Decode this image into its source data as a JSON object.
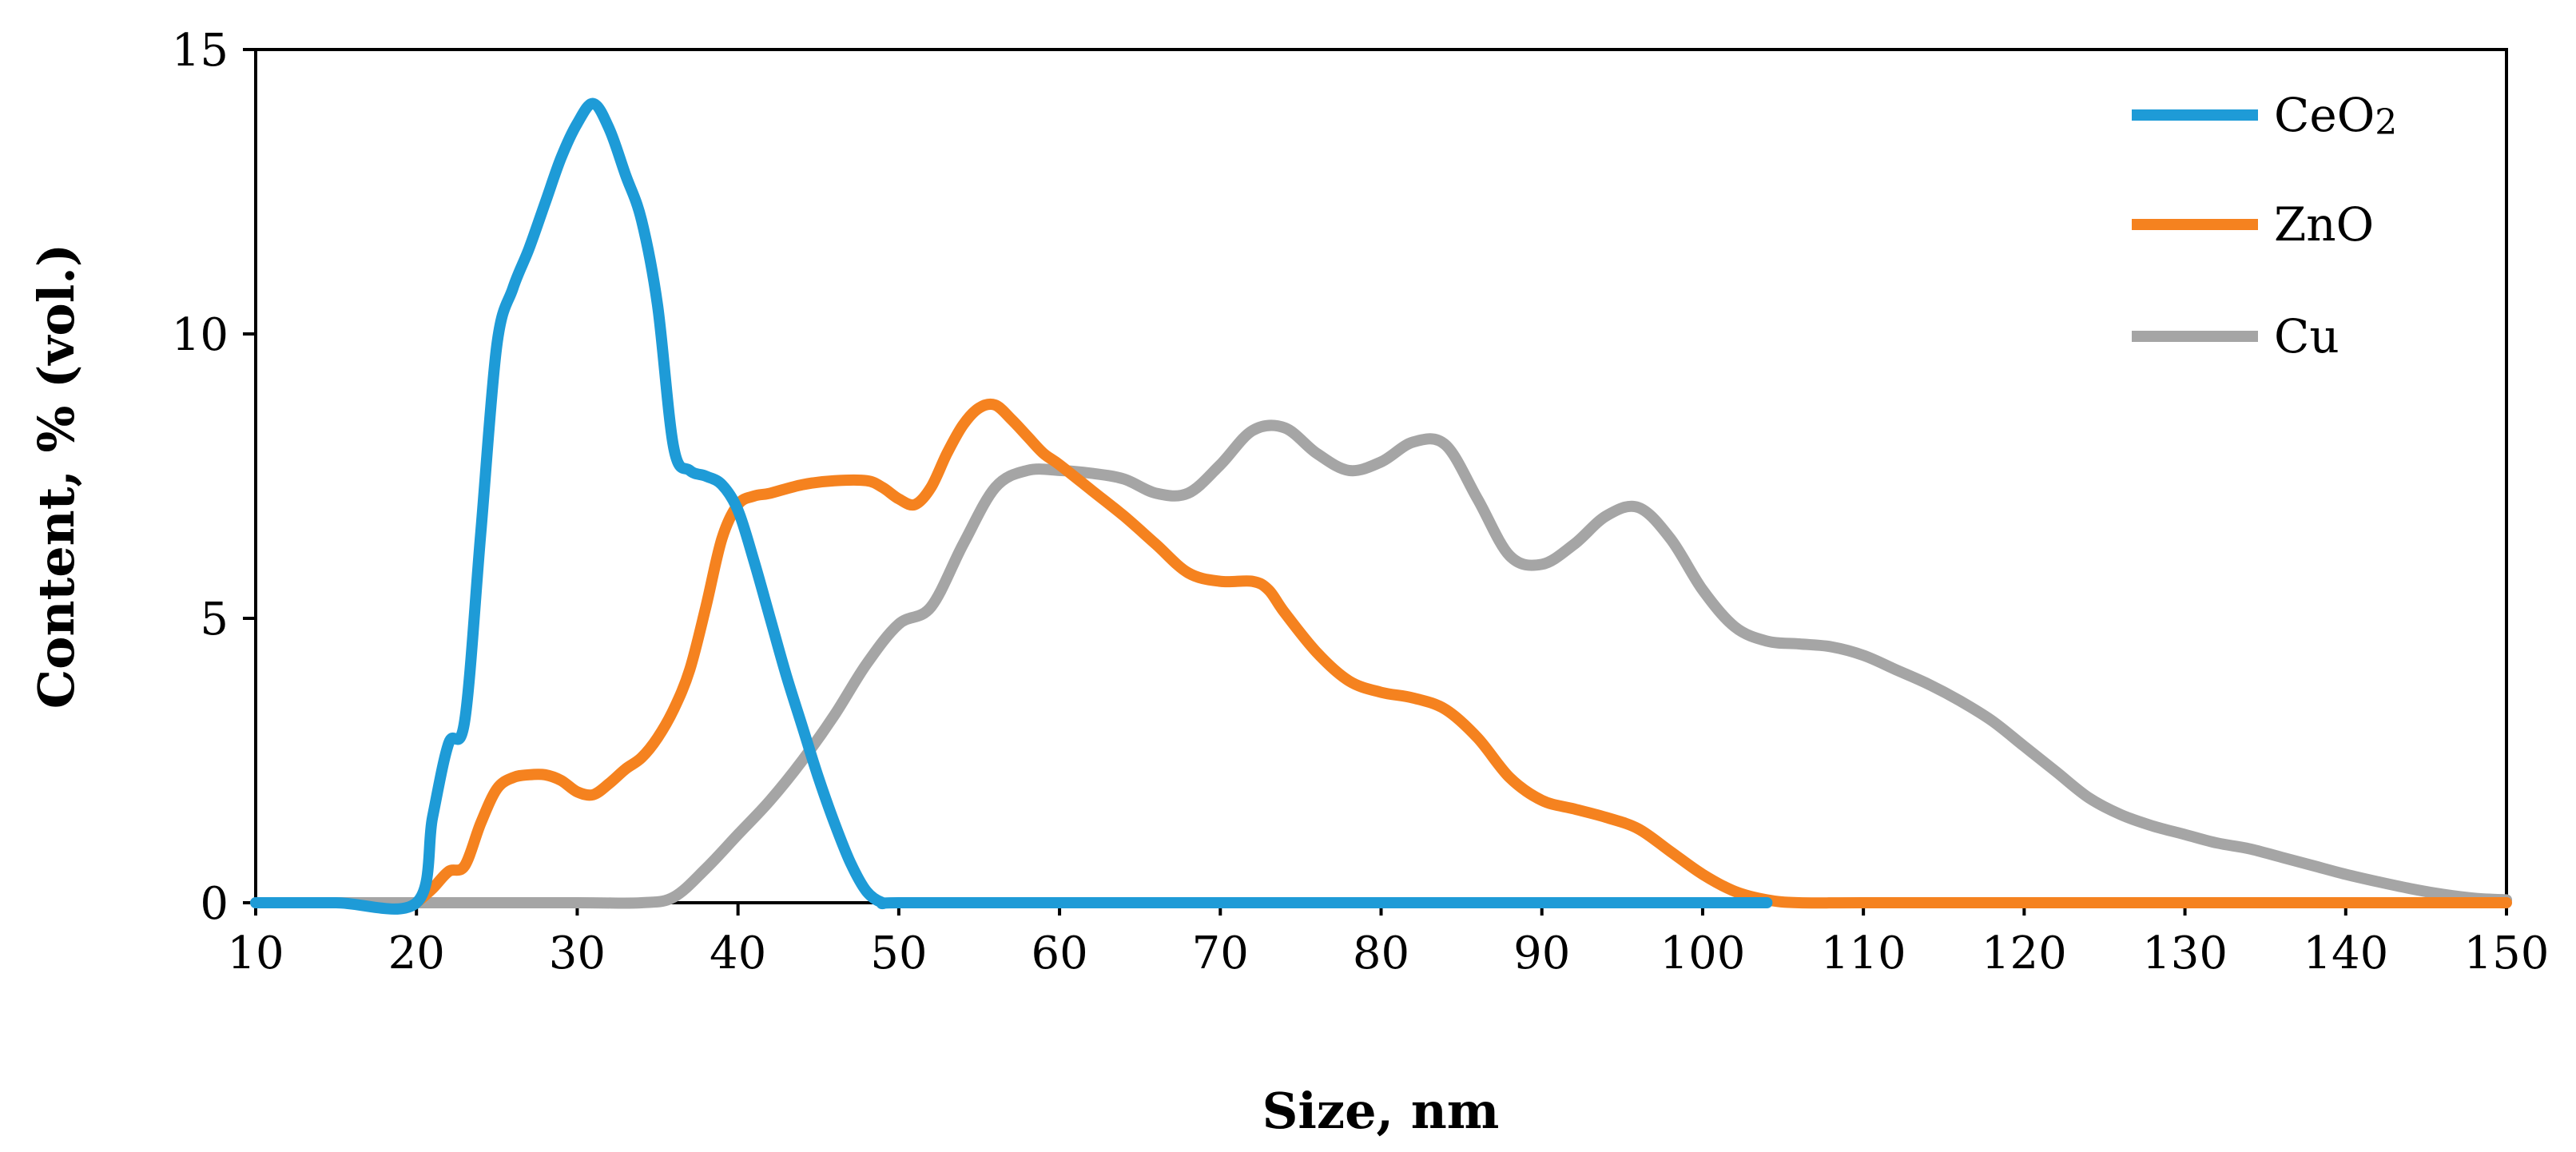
{
  "chart_data": {
    "type": "line",
    "title": "",
    "xlabel": "Size, nm",
    "ylabel": "Content, % (vol.)",
    "xlim": [
      10,
      150
    ],
    "ylim": [
      0,
      15
    ],
    "x_ticks": [
      10,
      20,
      30,
      40,
      50,
      60,
      70,
      80,
      90,
      100,
      110,
      120,
      130,
      140,
      150
    ],
    "y_ticks": [
      0,
      5,
      10,
      15
    ],
    "grid": false,
    "legend_position": "top-right",
    "series": [
      {
        "name": "CeO2",
        "legend_main": "CeO",
        "legend_sub": "2",
        "color": "#1E9BD7",
        "points": [
          [
            10,
            0
          ],
          [
            15,
            0
          ],
          [
            20,
            0
          ],
          [
            21,
            1.5
          ],
          [
            22,
            2.8
          ],
          [
            23,
            3.2
          ],
          [
            24,
            6.5
          ],
          [
            25,
            9.8
          ],
          [
            26,
            10.8
          ],
          [
            27,
            11.5
          ],
          [
            28,
            12.3
          ],
          [
            29,
            13.1
          ],
          [
            30,
            13.7
          ],
          [
            31,
            14.05
          ],
          [
            32,
            13.6
          ],
          [
            33,
            12.8
          ],
          [
            34,
            12.0
          ],
          [
            35,
            10.5
          ],
          [
            36,
            8.0
          ],
          [
            37,
            7.6
          ],
          [
            38,
            7.5
          ],
          [
            39,
            7.35
          ],
          [
            40,
            6.9
          ],
          [
            41,
            6.0
          ],
          [
            42,
            5.0
          ],
          [
            43,
            4.0
          ],
          [
            44,
            3.1
          ],
          [
            45,
            2.2
          ],
          [
            46,
            1.4
          ],
          [
            47,
            0.7
          ],
          [
            48,
            0.2
          ],
          [
            49,
            0
          ],
          [
            50,
            0
          ],
          [
            60,
            0
          ],
          [
            80,
            0
          ],
          [
            100,
            0
          ],
          [
            104,
            0
          ]
        ]
      },
      {
        "name": "ZnO",
        "legend_main": "ZnO",
        "legend_sub": "",
        "color": "#F5821F",
        "points": [
          [
            20,
            0
          ],
          [
            21,
            0.25
          ],
          [
            22,
            0.55
          ],
          [
            23,
            0.65
          ],
          [
            24,
            1.4
          ],
          [
            25,
            2.0
          ],
          [
            26,
            2.2
          ],
          [
            27,
            2.25
          ],
          [
            28,
            2.25
          ],
          [
            29,
            2.15
          ],
          [
            30,
            1.95
          ],
          [
            31,
            1.9
          ],
          [
            32,
            2.1
          ],
          [
            33,
            2.35
          ],
          [
            34,
            2.55
          ],
          [
            35,
            2.9
          ],
          [
            36,
            3.4
          ],
          [
            37,
            4.1
          ],
          [
            38,
            5.2
          ],
          [
            39,
            6.4
          ],
          [
            40,
            7.0
          ],
          [
            41,
            7.15
          ],
          [
            42,
            7.2
          ],
          [
            44,
            7.35
          ],
          [
            46,
            7.42
          ],
          [
            48,
            7.42
          ],
          [
            49,
            7.3
          ],
          [
            50,
            7.1
          ],
          [
            51,
            7.0
          ],
          [
            52,
            7.3
          ],
          [
            53,
            7.9
          ],
          [
            54,
            8.4
          ],
          [
            55,
            8.7
          ],
          [
            56,
            8.75
          ],
          [
            57,
            8.5
          ],
          [
            58,
            8.2
          ],
          [
            59,
            7.9
          ],
          [
            60,
            7.7
          ],
          [
            62,
            7.25
          ],
          [
            64,
            6.8
          ],
          [
            66,
            6.3
          ],
          [
            68,
            5.8
          ],
          [
            70,
            5.65
          ],
          [
            72,
            5.65
          ],
          [
            73,
            5.5
          ],
          [
            74,
            5.1
          ],
          [
            76,
            4.4
          ],
          [
            78,
            3.9
          ],
          [
            80,
            3.7
          ],
          [
            82,
            3.6
          ],
          [
            84,
            3.4
          ],
          [
            86,
            2.9
          ],
          [
            88,
            2.2
          ],
          [
            90,
            1.8
          ],
          [
            92,
            1.65
          ],
          [
            94,
            1.5
          ],
          [
            96,
            1.3
          ],
          [
            98,
            0.9
          ],
          [
            100,
            0.5
          ],
          [
            102,
            0.2
          ],
          [
            104,
            0.05
          ],
          [
            106,
            0
          ],
          [
            110,
            0
          ],
          [
            120,
            0
          ],
          [
            130,
            0
          ],
          [
            140,
            0
          ],
          [
            150,
            0
          ]
        ]
      },
      {
        "name": "Cu",
        "legend_main": "Cu",
        "legend_sub": "",
        "color": "#A5A5A5",
        "points": [
          [
            10,
            0
          ],
          [
            20,
            0
          ],
          [
            30,
            0
          ],
          [
            34,
            0
          ],
          [
            36,
            0.1
          ],
          [
            38,
            0.6
          ],
          [
            40,
            1.2
          ],
          [
            42,
            1.8
          ],
          [
            44,
            2.5
          ],
          [
            46,
            3.3
          ],
          [
            48,
            4.2
          ],
          [
            50,
            4.9
          ],
          [
            52,
            5.2
          ],
          [
            54,
            6.3
          ],
          [
            56,
            7.3
          ],
          [
            58,
            7.6
          ],
          [
            60,
            7.6
          ],
          [
            62,
            7.55
          ],
          [
            64,
            7.45
          ],
          [
            66,
            7.2
          ],
          [
            68,
            7.2
          ],
          [
            70,
            7.7
          ],
          [
            72,
            8.3
          ],
          [
            74,
            8.35
          ],
          [
            76,
            7.9
          ],
          [
            78,
            7.6
          ],
          [
            80,
            7.75
          ],
          [
            82,
            8.1
          ],
          [
            84,
            8.05
          ],
          [
            86,
            7.1
          ],
          [
            88,
            6.1
          ],
          [
            90,
            5.95
          ],
          [
            92,
            6.3
          ],
          [
            94,
            6.8
          ],
          [
            96,
            6.95
          ],
          [
            98,
            6.4
          ],
          [
            100,
            5.5
          ],
          [
            102,
            4.85
          ],
          [
            104,
            4.6
          ],
          [
            106,
            4.55
          ],
          [
            108,
            4.5
          ],
          [
            110,
            4.35
          ],
          [
            112,
            4.1
          ],
          [
            114,
            3.85
          ],
          [
            116,
            3.55
          ],
          [
            118,
            3.2
          ],
          [
            120,
            2.75
          ],
          [
            122,
            2.3
          ],
          [
            124,
            1.85
          ],
          [
            126,
            1.55
          ],
          [
            128,
            1.35
          ],
          [
            130,
            1.2
          ],
          [
            132,
            1.05
          ],
          [
            134,
            0.95
          ],
          [
            136,
            0.8
          ],
          [
            138,
            0.65
          ],
          [
            140,
            0.5
          ],
          [
            142,
            0.37
          ],
          [
            144,
            0.25
          ],
          [
            146,
            0.15
          ],
          [
            148,
            0.08
          ],
          [
            150,
            0.05
          ]
        ]
      }
    ]
  }
}
